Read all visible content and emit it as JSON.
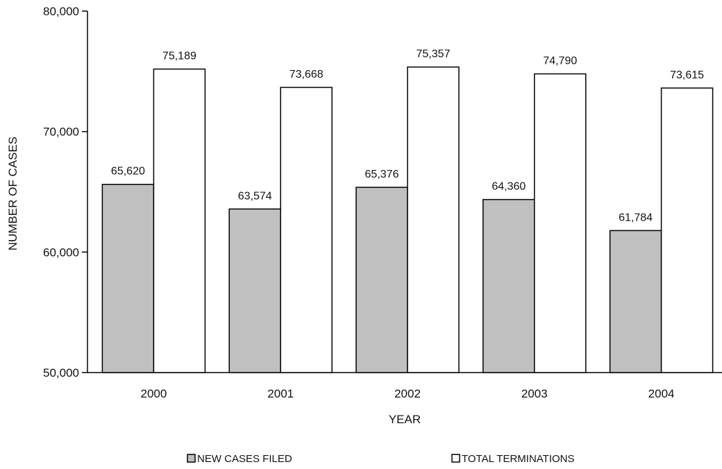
{
  "chart_data": {
    "type": "bar",
    "categories": [
      "2000",
      "2001",
      "2002",
      "2003",
      "2004"
    ],
    "series": [
      {
        "name": "NEW CASES FILED",
        "values": [
          65620,
          63574,
          65376,
          64360,
          61784
        ],
        "color": "#c0c0c0"
      },
      {
        "name": "TOTAL TERMINATIONS",
        "values": [
          75189,
          73668,
          75357,
          74790,
          73615
        ],
        "color": "#ffffff"
      }
    ],
    "value_labels": [
      [
        "65,620",
        "63,574",
        "65,376",
        "64,360",
        "61,784"
      ],
      [
        "75,189",
        "73,668",
        "75,357",
        "74,790",
        "73,615"
      ]
    ],
    "xlabel": "YEAR",
    "ylabel": "NUMBER OF CASES",
    "ylim": [
      50000,
      80000
    ],
    "yticks": [
      50000,
      60000,
      70000,
      80000
    ],
    "ytick_labels": [
      "50,000",
      "60,000",
      "70,000",
      "80,000"
    ],
    "grid": false,
    "legend_position": "bottom"
  }
}
